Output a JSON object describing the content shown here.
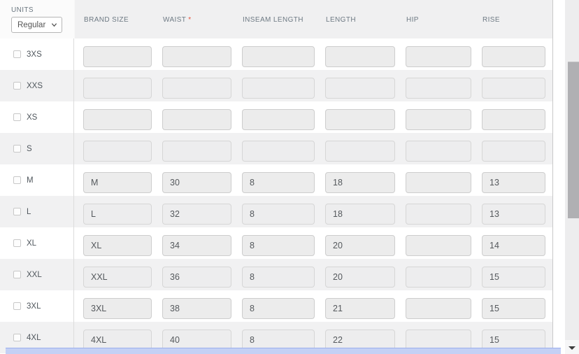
{
  "units": {
    "label": "UNITS",
    "value": "Regular"
  },
  "required_marker": "*",
  "columns": [
    {
      "key": "brand-size",
      "label": "BRAND SIZE",
      "required": false
    },
    {
      "key": "waist",
      "label": "WAIST",
      "required": true
    },
    {
      "key": "inseam-length",
      "label": "INSEAM LENGTH",
      "required": false
    },
    {
      "key": "length",
      "label": "LENGTH",
      "required": false
    },
    {
      "key": "hip",
      "label": "HIP",
      "required": false
    },
    {
      "key": "rise",
      "label": "RISE",
      "required": false
    }
  ],
  "rows": [
    {
      "size": "3XS",
      "checked": false,
      "values": [
        "",
        "",
        "",
        "",
        "",
        ""
      ]
    },
    {
      "size": "XXS",
      "checked": false,
      "values": [
        "",
        "",
        "",
        "",
        "",
        ""
      ]
    },
    {
      "size": "XS",
      "checked": false,
      "values": [
        "",
        "",
        "",
        "",
        "",
        ""
      ]
    },
    {
      "size": "S",
      "checked": false,
      "values": [
        "",
        "",
        "",
        "",
        "",
        ""
      ]
    },
    {
      "size": "M",
      "checked": false,
      "values": [
        "M",
        "30",
        "8",
        "18",
        "",
        "13"
      ]
    },
    {
      "size": "L",
      "checked": false,
      "values": [
        "L",
        "32",
        "8",
        "18",
        "",
        "13"
      ]
    },
    {
      "size": "XL",
      "checked": false,
      "values": [
        "XL",
        "34",
        "8",
        "20",
        "",
        "14"
      ]
    },
    {
      "size": "XXL",
      "checked": false,
      "values": [
        "XXL",
        "36",
        "8",
        "20",
        "",
        "15"
      ]
    },
    {
      "size": "3XL",
      "checked": false,
      "values": [
        "3XL",
        "38",
        "8",
        "21",
        "",
        "15"
      ]
    },
    {
      "size": "4XL",
      "checked": false,
      "values": [
        "4XL",
        "40",
        "8",
        "22",
        "",
        "15"
      ]
    }
  ],
  "colors": {
    "header_bg": "#f0f0f1",
    "row_alt_bg": "#f1f1f2",
    "input_bg": "#ececec",
    "required_marker": "#e8503a",
    "hscroll_accent": "#c4d0f5",
    "vscroll_thumb": "#b0b0b3"
  }
}
